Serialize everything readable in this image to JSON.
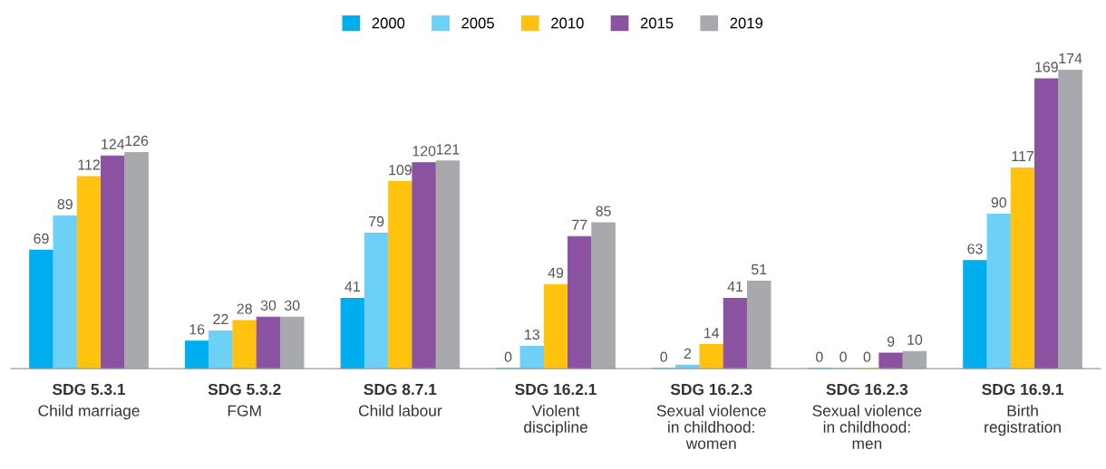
{
  "chart_data": {
    "type": "bar",
    "categories": [
      "SDG 5.3.1\nChild marriage",
      "SDG 5.3.2\nFGM",
      "SDG 8.7.1\nChild labour",
      "SDG 16.2.1\nViolent\ndiscipline",
      "SDG 16.2.3\nSexual violence\nin childhood:\nwomen",
      "SDG 16.2.3\nSexual violence\nin childhood:\nmen",
      "SDG 16.9.1\nBirth\nregistration"
    ],
    "series": [
      {
        "name": "2000",
        "color": "#00aeef",
        "values": [
          69,
          16,
          41,
          0,
          0,
          0,
          63
        ]
      },
      {
        "name": "2005",
        "color": "#6dd0f7",
        "values": [
          89,
          22,
          79,
          13,
          2,
          0,
          90
        ]
      },
      {
        "name": "2010",
        "color": "#ffc20e",
        "values": [
          112,
          28,
          109,
          49,
          14,
          0,
          117
        ]
      },
      {
        "name": "2015",
        "color": "#8b52a1",
        "values": [
          124,
          30,
          120,
          77,
          41,
          9,
          169
        ]
      },
      {
        "name": "2019",
        "color": "#a7a9ac",
        "values": [
          126,
          30,
          121,
          85,
          51,
          10,
          174
        ]
      }
    ],
    "data_labels": true,
    "legend": "top",
    "grid": false
  }
}
